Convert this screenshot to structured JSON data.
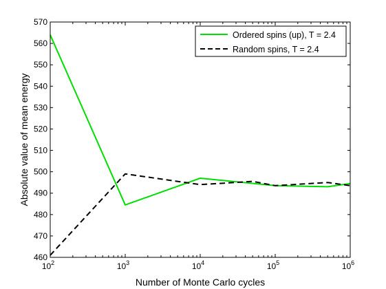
{
  "chart_data": {
    "type": "line",
    "xlabel": "Number of Monte Carlo cycles",
    "ylabel": "Absolute value of mean energy",
    "xscale": "log",
    "xlim": [
      100,
      1000000
    ],
    "ylim": [
      460,
      570
    ],
    "yticks": [
      460,
      470,
      480,
      490,
      500,
      510,
      520,
      530,
      540,
      550,
      560,
      570
    ],
    "xticks": [
      {
        "value": 100,
        "base": "10",
        "exp": "2"
      },
      {
        "value": 1000,
        "base": "10",
        "exp": "3"
      },
      {
        "value": 10000,
        "base": "10",
        "exp": "4"
      },
      {
        "value": 100000,
        "base": "10",
        "exp": "5"
      },
      {
        "value": 1000000,
        "base": "10",
        "exp": "6"
      }
    ],
    "grid": false,
    "legend_position": "top-right",
    "series": [
      {
        "name": "Ordered spins (up), T = 2.4",
        "color": "#00dd00",
        "style": "solid",
        "x": [
          100,
          1000,
          10000,
          100000,
          500000,
          1000000
        ],
        "y": [
          564,
          484.5,
          497,
          493.5,
          493,
          494.5
        ]
      },
      {
        "name": "Random spins, T = 2.4",
        "color": "#000000",
        "style": "dashed",
        "x": [
          100,
          1000,
          10000,
          50000,
          100000,
          500000,
          1000000
        ],
        "y": [
          461,
          499,
          494,
          495.5,
          493.5,
          495,
          493.5
        ]
      }
    ]
  }
}
